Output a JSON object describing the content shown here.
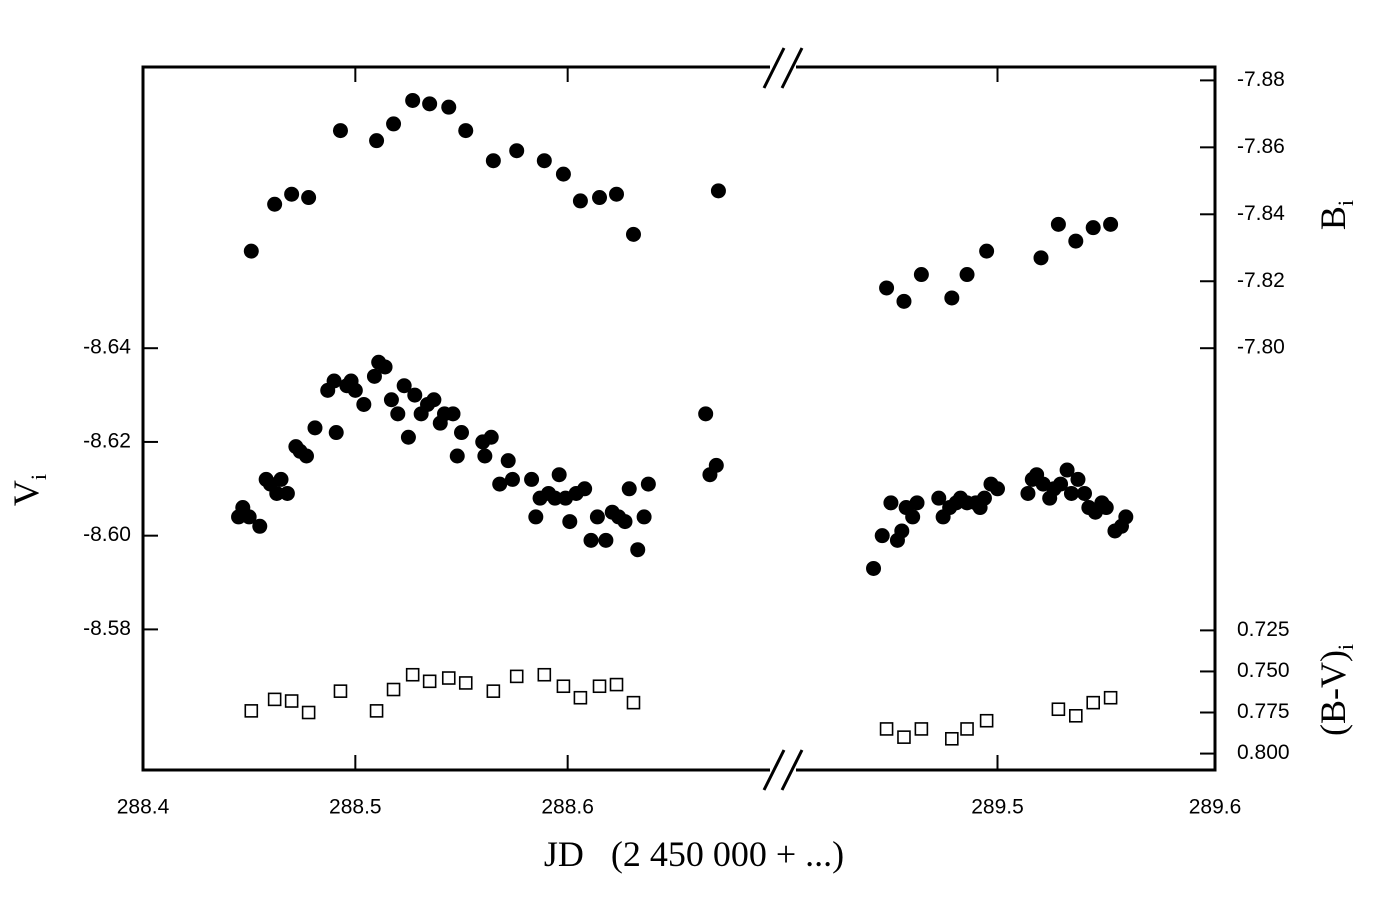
{
  "chart_data": {
    "type": "scatter",
    "xlabel": "JD   (2 450 000 + ...)",
    "ylabel": {
      "main": "V",
      "sub": "i"
    },
    "y2label": {
      "main": "B",
      "sub": "i"
    },
    "y3label": {
      "main": "(B-V)",
      "sub": "i"
    },
    "xlim": [
      288.4,
      289.6
    ],
    "x_break": [
      288.7,
      289.4
    ],
    "xticks": [
      288.4,
      288.5,
      288.6,
      289.5,
      289.6
    ],
    "ylim": [
      -8.55,
      -8.7
    ],
    "yticks": [
      {
        "value": -8.58,
        "label": "-8.58"
      },
      {
        "value": -8.6,
        "label": "-8.60"
      },
      -8.62,
      -8.64
    ],
    "y2lim": [
      -7.674,
      -7.884
    ],
    "y2ticks": [
      {
        "value": -7.8,
        "label": "-7.80"
      },
      -7.82,
      -7.84,
      -7.86,
      -7.88
    ],
    "y3lim": [
      0.81,
      0.382
    ],
    "y3ticks": [
      0.725,
      {
        "value": 0.75,
        "label": "0.750"
      },
      0.775,
      {
        "value": 0.8,
        "label": "0.800"
      }
    ],
    "grid": false,
    "series": [
      {
        "axis": "y2",
        "marker": "circle",
        "color": "#000000",
        "x": [
          288.451,
          288.462,
          288.47,
          288.478,
          288.493,
          288.51,
          288.518,
          288.527,
          288.535,
          288.544,
          288.552,
          288.565,
          288.576,
          288.589,
          288.598,
          288.606,
          288.615,
          288.623,
          288.631,
          288.671,
          289.449,
          289.457,
          289.465,
          289.479,
          289.486,
          289.495,
          289.52,
          289.528,
          289.536,
          289.544,
          289.552
        ],
        "values": [
          -7.829,
          -7.843,
          -7.846,
          -7.845,
          -7.865,
          -7.862,
          -7.867,
          -7.874,
          -7.873,
          -7.872,
          -7.865,
          -7.856,
          -7.859,
          -7.856,
          -7.852,
          -7.844,
          -7.845,
          -7.846,
          -7.834,
          -7.847,
          -7.818,
          -7.814,
          -7.822,
          -7.815,
          -7.822,
          -7.829,
          -7.827,
          -7.837,
          -7.832,
          -7.836,
          -7.837
        ]
      },
      {
        "axis": "y",
        "marker": "circle",
        "color": "#000000",
        "x": [
          288.445,
          288.447,
          288.45,
          288.455,
          288.458,
          288.46,
          288.463,
          288.465,
          288.468,
          288.472,
          288.474,
          288.477,
          288.481,
          288.487,
          288.49,
          288.491,
          288.496,
          288.498,
          288.5,
          288.504,
          288.509,
          288.511,
          288.514,
          288.517,
          288.52,
          288.523,
          288.525,
          288.528,
          288.531,
          288.534,
          288.537,
          288.54,
          288.542,
          288.546,
          288.548,
          288.55,
          288.56,
          288.561,
          288.564,
          288.568,
          288.572,
          288.574,
          288.583,
          288.585,
          288.587,
          288.591,
          288.594,
          288.596,
          288.599,
          288.601,
          288.604,
          288.608,
          288.611,
          288.614,
          288.618,
          288.621,
          288.624,
          288.627,
          288.629,
          288.633,
          288.636,
          288.638,
          288.665,
          288.667,
          288.67,
          289.443,
          289.447,
          289.451,
          289.454,
          289.456,
          289.458,
          289.461,
          289.463,
          289.473,
          289.475,
          289.478,
          289.481,
          289.483,
          289.486,
          289.49,
          289.492,
          289.494,
          289.497,
          289.5,
          289.514,
          289.516,
          289.518,
          289.521,
          289.524,
          289.526,
          289.529,
          289.532,
          289.534,
          289.537,
          289.54,
          289.542,
          289.545,
          289.548,
          289.55,
          289.554,
          289.557,
          289.559
        ],
        "values": [
          -8.604,
          -8.606,
          -8.604,
          -8.602,
          -8.612,
          -8.611,
          -8.609,
          -8.612,
          -8.609,
          -8.619,
          -8.618,
          -8.617,
          -8.623,
          -8.631,
          -8.633,
          -8.622,
          -8.632,
          -8.633,
          -8.631,
          -8.628,
          -8.634,
          -8.637,
          -8.636,
          -8.629,
          -8.626,
          -8.632,
          -8.621,
          -8.63,
          -8.626,
          -8.628,
          -8.629,
          -8.624,
          -8.626,
          -8.626,
          -8.617,
          -8.622,
          -8.62,
          -8.617,
          -8.621,
          -8.611,
          -8.616,
          -8.612,
          -8.612,
          -8.604,
          -8.608,
          -8.609,
          -8.608,
          -8.613,
          -8.608,
          -8.603,
          -8.609,
          -8.61,
          -8.599,
          -8.604,
          -8.599,
          -8.605,
          -8.604,
          -8.603,
          -8.61,
          -8.597,
          -8.604,
          -8.611,
          -8.626,
          -8.613,
          -8.615,
          -8.593,
          -8.6,
          -8.607,
          -8.599,
          -8.601,
          -8.606,
          -8.604,
          -8.607,
          -8.608,
          -8.604,
          -8.606,
          -8.607,
          -8.608,
          -8.607,
          -8.607,
          -8.606,
          -8.608,
          -8.611,
          -8.61,
          -8.609,
          -8.612,
          -8.613,
          -8.611,
          -8.608,
          -8.61,
          -8.611,
          -8.614,
          -8.609,
          -8.612,
          -8.609,
          -8.606,
          -8.605,
          -8.607,
          -8.606,
          -8.601,
          -8.602,
          -8.604
        ]
      },
      {
        "axis": "y3",
        "marker": "square",
        "color": "#000000",
        "x": [
          288.451,
          288.462,
          288.47,
          288.478,
          288.493,
          288.51,
          288.518,
          288.527,
          288.535,
          288.544,
          288.552,
          288.565,
          288.576,
          288.589,
          288.598,
          288.606,
          288.615,
          288.623,
          288.631,
          289.449,
          289.457,
          289.465,
          289.479,
          289.486,
          289.495,
          289.528,
          289.536,
          289.544,
          289.552
        ],
        "values": [
          0.774,
          0.767,
          0.768,
          0.775,
          0.762,
          0.774,
          0.761,
          0.752,
          0.756,
          0.754,
          0.757,
          0.762,
          0.753,
          0.752,
          0.759,
          0.766,
          0.759,
          0.758,
          0.769,
          0.785,
          0.79,
          0.785,
          0.791,
          0.785,
          0.78,
          0.773,
          0.777,
          0.769,
          0.766
        ]
      }
    ]
  }
}
